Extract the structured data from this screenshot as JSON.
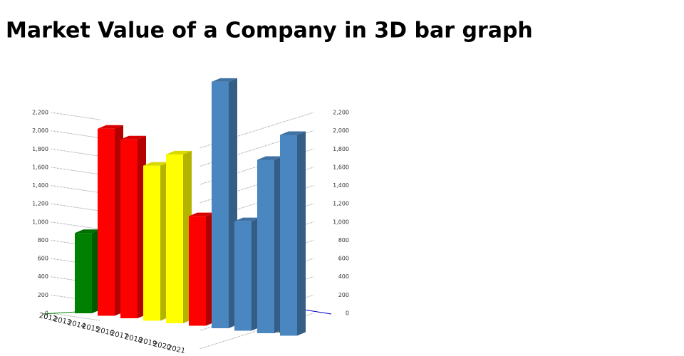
{
  "chart_data": {
    "type": "bar3d",
    "title": "Market Value of a Company in 3D bar graph",
    "x_label": "undefined",
    "categories": [
      "2012",
      "2013",
      "2014",
      "2015",
      "2016",
      "2017",
      "2018",
      "2019",
      "2020",
      "2021"
    ],
    "values": [
      880,
      2050,
      1960,
      1700,
      1850,
      1200,
      2700,
      1200,
      1900,
      2200
    ],
    "colors": [
      "#008000",
      "#ff0000",
      "#ff0000",
      "#ffff00",
      "#ffff00",
      "#ff0000",
      "#4a86c0",
      "#4a86c0",
      "#4a86c0",
      "#4a86c0"
    ],
    "ylim": [
      0,
      2200
    ],
    "yticks": [
      0,
      200,
      400,
      600,
      800,
      {
        "value": 1000,
        "label": "1,000"
      },
      {
        "value": 1200,
        "label": "1,200"
      },
      {
        "value": 1400,
        "label": "1,400"
      },
      {
        "value": 1600,
        "label": "1,600"
      },
      {
        "value": 1800,
        "label": "1,800"
      },
      {
        "value": 2000,
        "label": "2,000"
      },
      {
        "value": 2200,
        "label": "2,200"
      }
    ]
  }
}
